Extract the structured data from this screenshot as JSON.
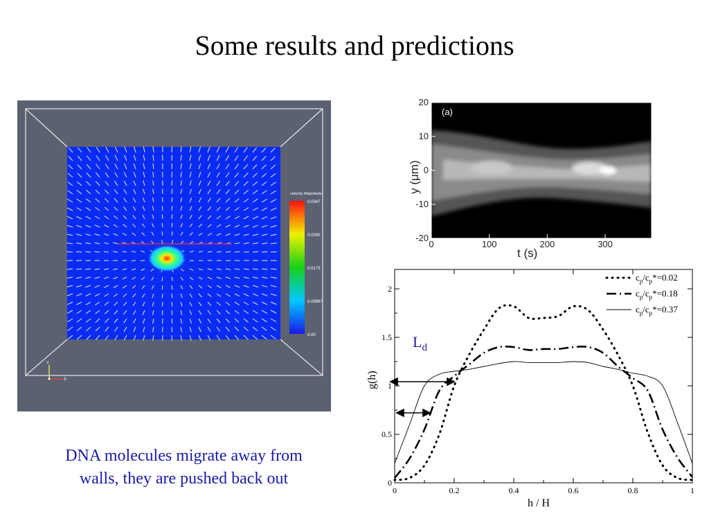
{
  "slide": {
    "title": "Some results and predictions",
    "caption_line1": "DNA molecules migrate away from",
    "caption_line2": "walls, they are pushed back out"
  },
  "simulation": {
    "legend_title": "velocity Magnitude",
    "legend_ticks": [
      "0.0347",
      "0.0260",
      "0.0173",
      "0.00867",
      "0.00"
    ],
    "axis_y": "Y",
    "axis_x": "X",
    "colors": {
      "frame": "#5b6171",
      "domain": "#0a2cf2",
      "arrows": "#ffffff"
    }
  },
  "chart_data": [
    {
      "type": "heatmap",
      "panel_label": "(a)",
      "xlabel": "t (s)",
      "ylabel": "y (μm)",
      "xlim": [
        0,
        380
      ],
      "ylim": [
        -20,
        20
      ],
      "xticks": [
        "0",
        "100",
        "200",
        "300"
      ],
      "yticks": [
        "20",
        "10",
        "0",
        "-10",
        "-20"
      ],
      "grid": false
    },
    {
      "type": "line",
      "xlabel": "h / H",
      "ylabel": "g(h)",
      "xlim": [
        0,
        1
      ],
      "ylim": [
        0,
        2.2
      ],
      "xticks": [
        "0",
        "0.2",
        "0.4",
        "0.6",
        "0.8",
        "1"
      ],
      "yticks": [
        "0",
        "0.5",
        "1",
        "1.5",
        "2"
      ],
      "annotation": "Ld",
      "legend_position": "top-right",
      "x": [
        0,
        0.05,
        0.1,
        0.15,
        0.2,
        0.25,
        0.3,
        0.35,
        0.4,
        0.45,
        0.5,
        0.55,
        0.6,
        0.65,
        0.7,
        0.75,
        0.8,
        0.85,
        0.9,
        0.95,
        1
      ],
      "series": [
        {
          "name": "cp/cp*=0.02",
          "label_parts": [
            "c",
            "p",
            "/c",
            "p",
            "*=0.02"
          ],
          "dash": "dotted",
          "values": [
            0.03,
            0.05,
            0.18,
            0.5,
            1.0,
            1.32,
            1.58,
            1.8,
            1.82,
            1.7,
            1.7,
            1.72,
            1.82,
            1.78,
            1.58,
            1.32,
            1.0,
            0.52,
            0.18,
            0.05,
            0.03
          ]
        },
        {
          "name": "cp/cp*=0.18",
          "label_parts": [
            "c",
            "p",
            "/c",
            "p",
            "*=0.18"
          ],
          "dash": "dash-dot",
          "values": [
            0.05,
            0.25,
            0.55,
            0.95,
            1.1,
            1.22,
            1.34,
            1.4,
            1.4,
            1.37,
            1.38,
            1.38,
            1.4,
            1.4,
            1.34,
            1.2,
            1.08,
            0.95,
            0.55,
            0.26,
            0.06
          ]
        },
        {
          "name": "cp/cp*=0.37",
          "label_parts": [
            "c",
            "p",
            "/c",
            "p",
            "*=0.37"
          ],
          "dash": "solid",
          "values": [
            0.2,
            0.6,
            1.0,
            1.12,
            1.15,
            1.17,
            1.2,
            1.23,
            1.25,
            1.24,
            1.24,
            1.24,
            1.25,
            1.24,
            1.2,
            1.17,
            1.13,
            1.1,
            1.0,
            0.62,
            0.2
          ]
        }
      ]
    }
  ]
}
